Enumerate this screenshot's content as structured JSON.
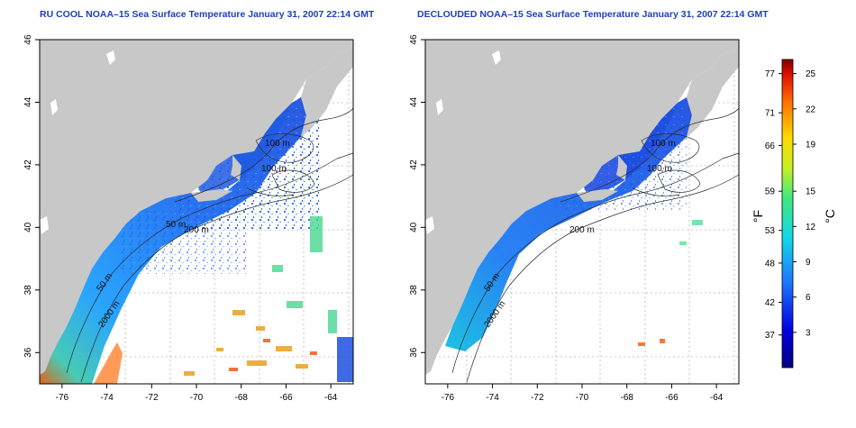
{
  "left_panel": {
    "title": "RU COOL NOAA–15 Sea Surface Temperature January 31, 2007 22:14 GMT"
  },
  "right_panel": {
    "title": "DECLOUDED NOAA–15 Sea Surface Temperature January 31, 2007 22:14 GMT"
  },
  "axes": {
    "lat_ticks": [
      "36",
      "38",
      "40",
      "42",
      "44",
      "46"
    ],
    "lon_ticks": [
      "-76",
      "-74",
      "-72",
      "-70",
      "-68",
      "-66",
      "-64"
    ]
  },
  "contours": {
    "left": [
      "100 m",
      "100 m",
      "200 m",
      "50 m",
      "50 m",
      "2000 m"
    ],
    "right": [
      "100 m",
      "100 m",
      "200 m",
      "50 m",
      "2000 m"
    ]
  },
  "colorbar": {
    "fahrenheit_label": "°F",
    "celsius_label": "°C",
    "fahrenheit_ticks": [
      "77",
      "71",
      "66",
      "59",
      "53",
      "48",
      "42",
      "37"
    ],
    "celsius_ticks": [
      "25",
      "22",
      "19",
      "15",
      "12",
      "9",
      "6",
      "3"
    ]
  },
  "colors": {
    "land": "#c8c8c8",
    "title": "#1f3fb8",
    "ocean_cold": "#1e3cd8",
    "ocean_warm": "#e83a10"
  }
}
